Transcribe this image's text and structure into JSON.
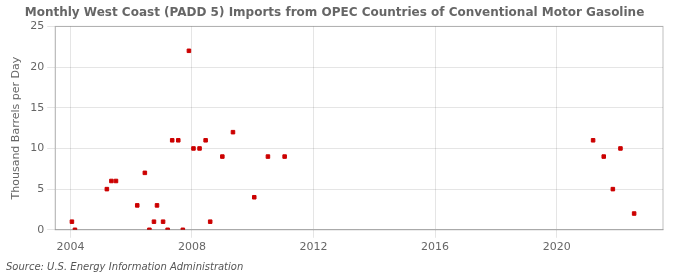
{
  "chart_data": {
    "type": "scatter",
    "title": "Monthly West Coast (PADD 5) Imports from OPEC Countries of Conventional Motor Gasoline",
    "y_label": "Thousand Barrels per Day",
    "annotation": "Source: U.S. Energy Information Administration",
    "color": "#cc0000",
    "marker": "square",
    "grid": true,
    "xlim": [
      2003.5,
      2023.5
    ],
    "ylim": [
      0,
      25
    ],
    "xticks": [
      2004,
      2008,
      2012,
      2016,
      2020
    ],
    "yticks": [
      0,
      5,
      10,
      15,
      20,
      25
    ],
    "x": [
      2004.05,
      2004.15,
      2005.2,
      2005.35,
      2005.5,
      2006.2,
      2006.45,
      2006.6,
      2006.75,
      2006.85,
      2007.05,
      2007.2,
      2007.35,
      2007.55,
      2007.7,
      2007.9,
      2008.05,
      2008.25,
      2008.45,
      2008.6,
      2009.0,
      2009.35,
      2010.05,
      2010.5,
      2011.05,
      2021.2,
      2021.55,
      2021.85,
      2022.1,
      2022.55
    ],
    "values": [
      1,
      0,
      5,
      6,
      6,
      3,
      7,
      0,
      1,
      3,
      1,
      0,
      11,
      11,
      0,
      22,
      10,
      10,
      11,
      1,
      9,
      12,
      4,
      9,
      9,
      11,
      9,
      5,
      10,
      2
    ]
  }
}
